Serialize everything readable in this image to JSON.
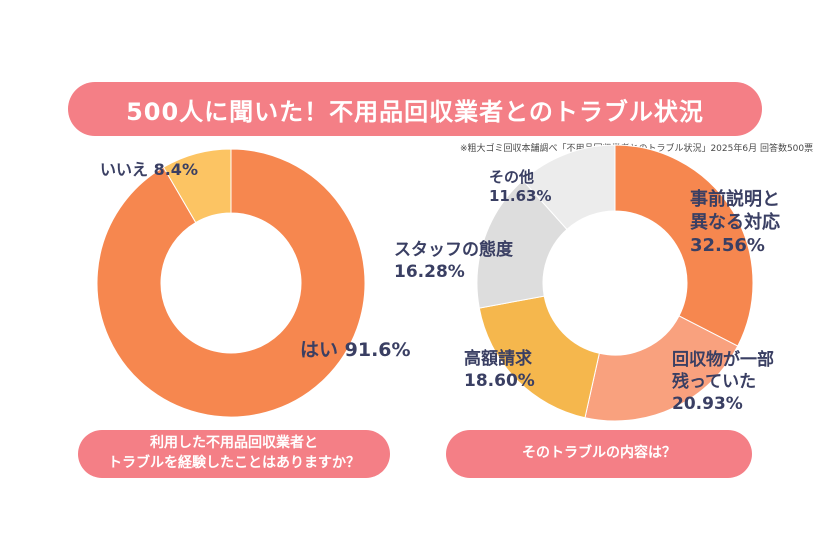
{
  "title": "500人に聞いた！不用品回収業者とのトラブル状況",
  "source_note": "※粗大ゴミ回収本舗調べ「不用品回収業者とのトラブル状況」2025年6月 回答数500票",
  "chart_data": [
    {
      "type": "pie",
      "question": [
        "利用した不用品回収業者と",
        "トラブルを経験したことはありますか？"
      ],
      "slices": [
        {
          "label": "はい",
          "value": 91.6,
          "pct_text": "91.6%",
          "color": "#f6874f"
        },
        {
          "label": "いいえ",
          "value": 8.4,
          "pct_text": "8.4%",
          "color": "#fcc463"
        }
      ]
    },
    {
      "type": "pie",
      "question": [
        "そのトラブルの内容は？"
      ],
      "slices": [
        {
          "label": "事前説明と異なる対応",
          "label_lines": [
            "事前説明と",
            "異なる対応"
          ],
          "value": 32.56,
          "pct_text": "32.56%",
          "color": "#f6874f"
        },
        {
          "label": "回収物が一部残っていた",
          "label_lines": [
            "回収物が一部",
            "残っていた"
          ],
          "value": 20.93,
          "pct_text": "20.93%",
          "color": "#f9a17e"
        },
        {
          "label": "高額請求",
          "label_lines": [
            "高額請求"
          ],
          "value": 18.6,
          "pct_text": "18.60%",
          "color": "#f5b74d"
        },
        {
          "label": "スタッフの態度",
          "label_lines": [
            "スタッフの態度"
          ],
          "value": 16.28,
          "pct_text": "16.28%",
          "color": "#dddddd"
        },
        {
          "label": "その他",
          "label_lines": [
            "その他"
          ],
          "value": 11.63,
          "pct_text": "11.63%",
          "color": "#ececec"
        }
      ]
    }
  ]
}
